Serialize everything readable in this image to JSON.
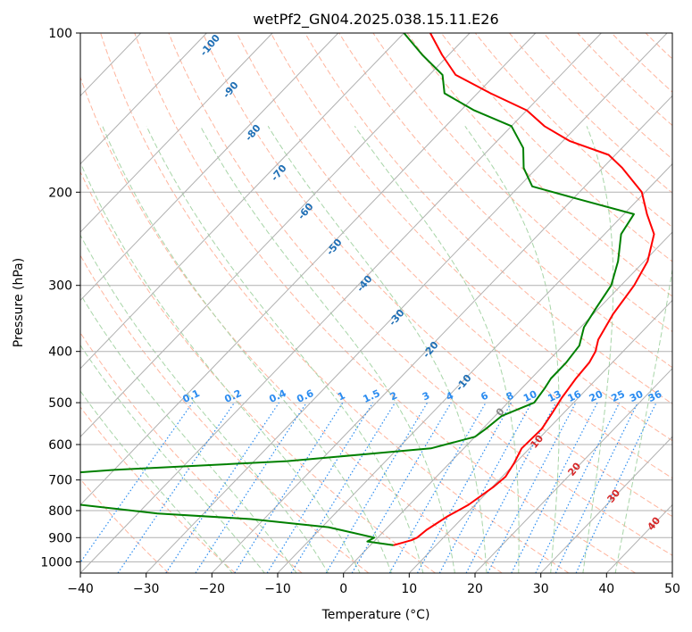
{
  "chart_data": {
    "type": "line",
    "diagram": "skew-T log-P",
    "title": "wetPf2_GN04.2025.038.15.11.E26",
    "xlabel": "Temperature (°C)",
    "ylabel": "Pressure (hPa)",
    "xlim": [
      -40,
      50
    ],
    "ylim": [
      1050,
      100
    ],
    "yscale": "log",
    "grid": true,
    "x_ticks": [
      "−40",
      "−30",
      "−20",
      "−10",
      "0",
      "10",
      "20",
      "30",
      "40",
      "50"
    ],
    "y_ticks": [
      "100",
      "200",
      "300",
      "400",
      "500",
      "600",
      "700",
      "800",
      "900",
      "1000"
    ],
    "series": [
      {
        "color": "#ff0000",
        "points": [
          [
            3.5,
            930
          ],
          [
            5.5,
            910
          ],
          [
            6.0,
            900
          ],
          [
            6.3,
            870
          ],
          [
            7.5,
            820
          ],
          [
            9.0,
            780
          ],
          [
            10.2,
            720
          ],
          [
            10.5,
            690
          ],
          [
            9.8,
            650
          ],
          [
            8.8,
            610
          ],
          [
            9.0,
            560
          ],
          [
            8.2,
            520
          ],
          [
            7.5,
            490
          ],
          [
            6.8,
            450
          ],
          [
            6.5,
            420
          ],
          [
            5.8,
            400
          ],
          [
            4.5,
            380
          ],
          [
            3.0,
            340
          ],
          [
            2.0,
            300
          ],
          [
            0.5,
            270
          ],
          [
            -2.5,
            240
          ],
          [
            -6.5,
            220
          ],
          [
            -10.5,
            200
          ],
          [
            -17.0,
            180
          ],
          [
            -21.0,
            170
          ],
          [
            -29.0,
            160
          ],
          [
            -35.0,
            150
          ],
          [
            -40.0,
            140
          ],
          [
            -48.0,
            130
          ],
          [
            -56.0,
            120
          ],
          [
            -61.0,
            110
          ],
          [
            -66.0,
            100
          ]
        ]
      },
      {
        "color": "#008000",
        "points": [
          [
            3.5,
            930
          ],
          [
            -1.0,
            915
          ],
          [
            -0.5,
            900
          ],
          [
            -9.0,
            860
          ],
          [
            -22.0,
            830
          ],
          [
            -37.0,
            810
          ],
          [
            -50.0,
            780
          ],
          [
            -64.0,
            745
          ],
          [
            -68.0,
            740
          ],
          [
            -70.0,
            700
          ],
          [
            -50.0,
            670
          ],
          [
            -25.0,
            645
          ],
          [
            -5.0,
            610
          ],
          [
            0.0,
            580
          ],
          [
            0.5,
            560
          ],
          [
            1.0,
            530
          ],
          [
            4.0,
            500
          ],
          [
            3.5,
            470
          ],
          [
            3.0,
            450
          ],
          [
            3.0,
            420
          ],
          [
            2.5,
            390
          ],
          [
            0.5,
            360
          ],
          [
            -0.5,
            330
          ],
          [
            -1.5,
            300
          ],
          [
            -4.0,
            270
          ],
          [
            -7.5,
            240
          ],
          [
            -8.5,
            220
          ],
          [
            -20.0,
            205
          ],
          [
            -28.0,
            195
          ],
          [
            -32.0,
            180
          ],
          [
            -35.0,
            165
          ],
          [
            -40.0,
            150
          ],
          [
            -48.0,
            140
          ],
          [
            -55.0,
            130
          ],
          [
            -58.0,
            120
          ],
          [
            -64.0,
            110
          ],
          [
            -70.0,
            100
          ]
        ]
      }
    ],
    "dry_adiabat_labels": [
      "-100",
      "-90",
      "-80",
      "-70",
      "-60",
      "-50",
      "-40",
      "-30",
      "-20",
      "-10"
    ],
    "mixing_ratio_labels": [
      "0.1",
      "0.2",
      "0.4",
      "0.6",
      "1",
      "1.5",
      "2",
      "3",
      "4",
      "6",
      "8",
      "10",
      "13",
      "16",
      "20",
      "25",
      "30",
      "36"
    ],
    "moist_adiabat_labels": [
      "0",
      "10",
      "20",
      "30",
      "40"
    ],
    "colors": {
      "temperature": "#ff0000",
      "dewpoint": "#008000",
      "isotherm": "#b0b0b0",
      "dry_adiabat": "#ffb59e",
      "moist_adiabat": "#a8d5a8",
      "mixing_ratio": "#2b8cf0"
    }
  }
}
